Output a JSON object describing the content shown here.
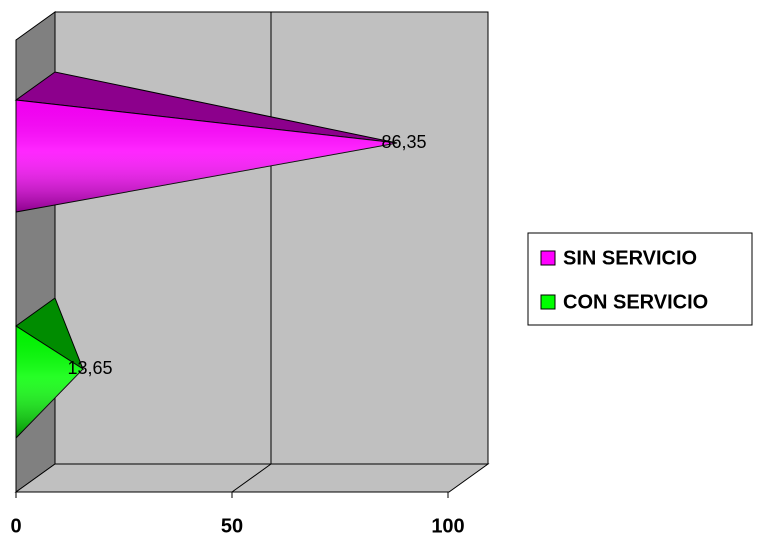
{
  "chart_data": {
    "type": "cone-bar-horizontal-3d",
    "series": [
      {
        "name": "SIN SERVICIO",
        "color": "#ff00ff",
        "values": [
          86.35
        ],
        "value_labels": [
          "86,35"
        ]
      },
      {
        "name": "CON SERVICIO",
        "color": "#00ff00",
        "values": [
          13.65
        ],
        "value_labels": [
          "13,65"
        ]
      }
    ],
    "xlim": [
      0,
      100
    ],
    "xticks": [
      0,
      50,
      100
    ],
    "grid": true,
    "legend": "right"
  }
}
